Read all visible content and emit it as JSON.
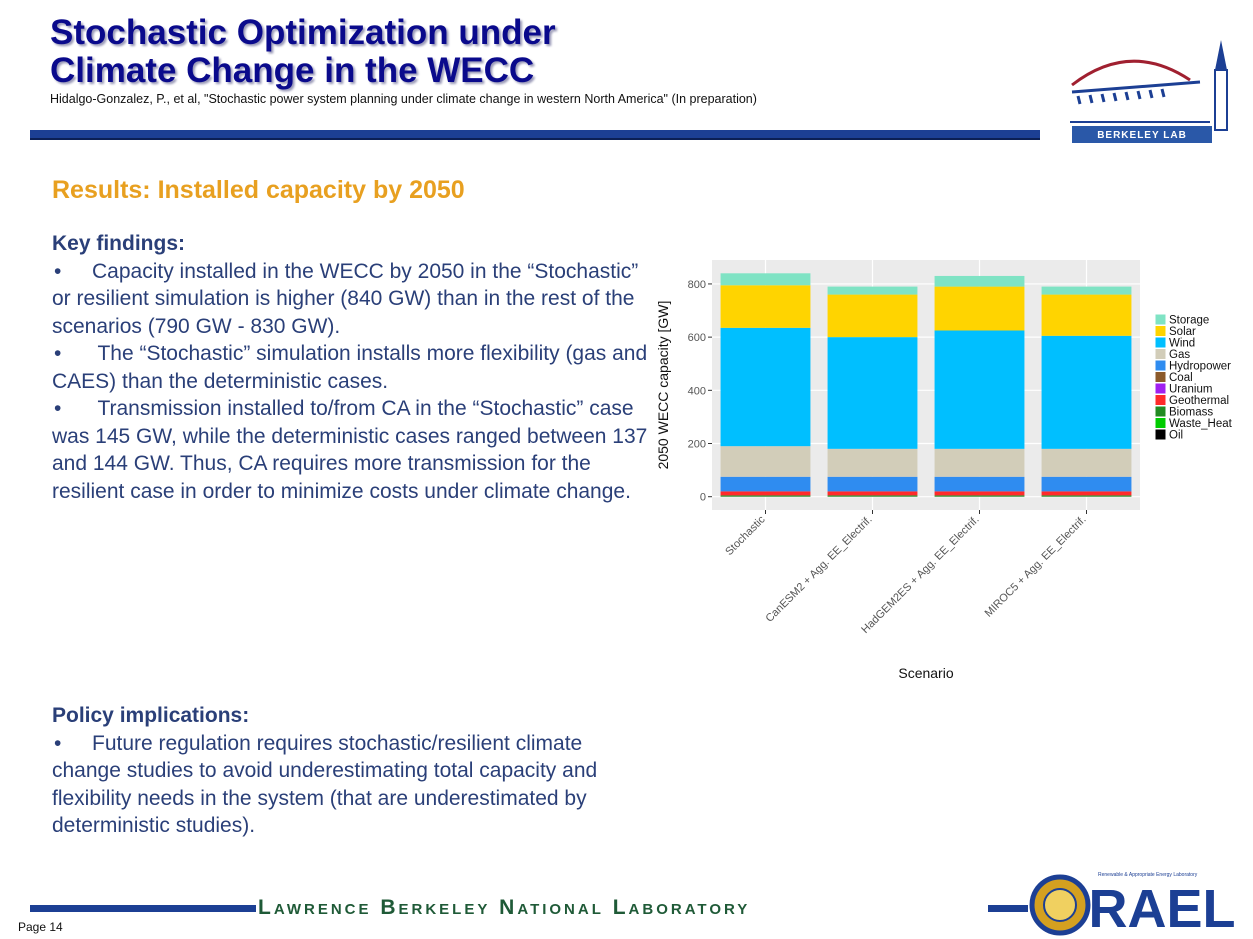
{
  "header": {
    "title_lines": [
      "Stochastic Optimization under",
      "Climate Change in the WECC"
    ],
    "citation": "Hidalgo-Gonzalez,  P., et al, \"Stochastic power system planning under climate change in western North America\" (In preparation)",
    "logo_text": "BERKELEY LAB"
  },
  "heading": "Results: Installed capacity by 2050",
  "key_findings": {
    "title": "Key findings:",
    "bullets": [
      "Capacity installed in the WECC by 2050 in the “Stochastic” or resilient simulation is higher (840 GW) than in the rest of the scenarios (790 GW - 830 GW).",
      " The “Stochastic” simulation installs more flexibility (gas and CAES) than the deterministic cases.",
      " Transmission installed to/from CA in the “Stochastic” case was 145 GW, while the deterministic cases ranged between 137 and 144 GW. Thus, CA requires more transmission for the resilient case in order to minimize costs under climate change."
    ]
  },
  "policy": {
    "title": "Policy implications:",
    "bullets": [
      "Future regulation requires stochastic/resilient climate change studies to avoid underestimating total capacity and flexibility needs in the system (that are underestimated by deterministic studies)."
    ]
  },
  "footer": {
    "lab": "Lawrence Berkeley National Laboratory",
    "rael": "RAEL",
    "rael_small": "Renewable & Appropriate Energy Laboratory",
    "page": "Page  14"
  },
  "chart_data": {
    "type": "stacked_bar",
    "categories": [
      "Stochastic",
      "CanESM2 + Agg. EE_Electrif.",
      "HadGEM2ES + Agg. EE_Electrif.",
      "MIROC5 + Agg. EE_Electrif."
    ],
    "x_label": "Scenario",
    "y_label": "2050 WECC capacity [GW]",
    "ylim": [
      -50,
      890
    ],
    "yticks": [
      0,
      200,
      400,
      600,
      800
    ],
    "grid": true,
    "legend": "right",
    "series": [
      {
        "name": "Storage",
        "color": "#7fe3c4",
        "values": [
          45,
          30,
          40,
          30
        ]
      },
      {
        "name": "Solar",
        "color": "#ffd400",
        "values": [
          160,
          160,
          165,
          155
        ]
      },
      {
        "name": "Wind",
        "color": "#00bfff",
        "values": [
          445,
          420,
          445,
          425
        ]
      },
      {
        "name": "Gas",
        "color": "#d2cdb9",
        "values": [
          115,
          105,
          105,
          105
        ]
      },
      {
        "name": "Hydropower",
        "color": "#2f8cf0",
        "values": [
          55,
          55,
          55,
          55
        ]
      },
      {
        "name": "Coal",
        "color": "#8b5a2b",
        "values": [
          0,
          0,
          0,
          0
        ]
      },
      {
        "name": "Uranium",
        "color": "#a020f0",
        "values": [
          0,
          0,
          0,
          0
        ]
      },
      {
        "name": "Geothermal",
        "color": "#ff2a2a",
        "values": [
          15,
          15,
          15,
          15
        ]
      },
      {
        "name": "Biomass",
        "color": "#228b22",
        "values": [
          5,
          5,
          5,
          5
        ]
      },
      {
        "name": "Waste_Heat",
        "color": "#00cc00",
        "values": [
          0,
          0,
          0,
          0
        ]
      },
      {
        "name": "Oil",
        "color": "#000000",
        "values": [
          0,
          0,
          0,
          0
        ]
      }
    ]
  }
}
